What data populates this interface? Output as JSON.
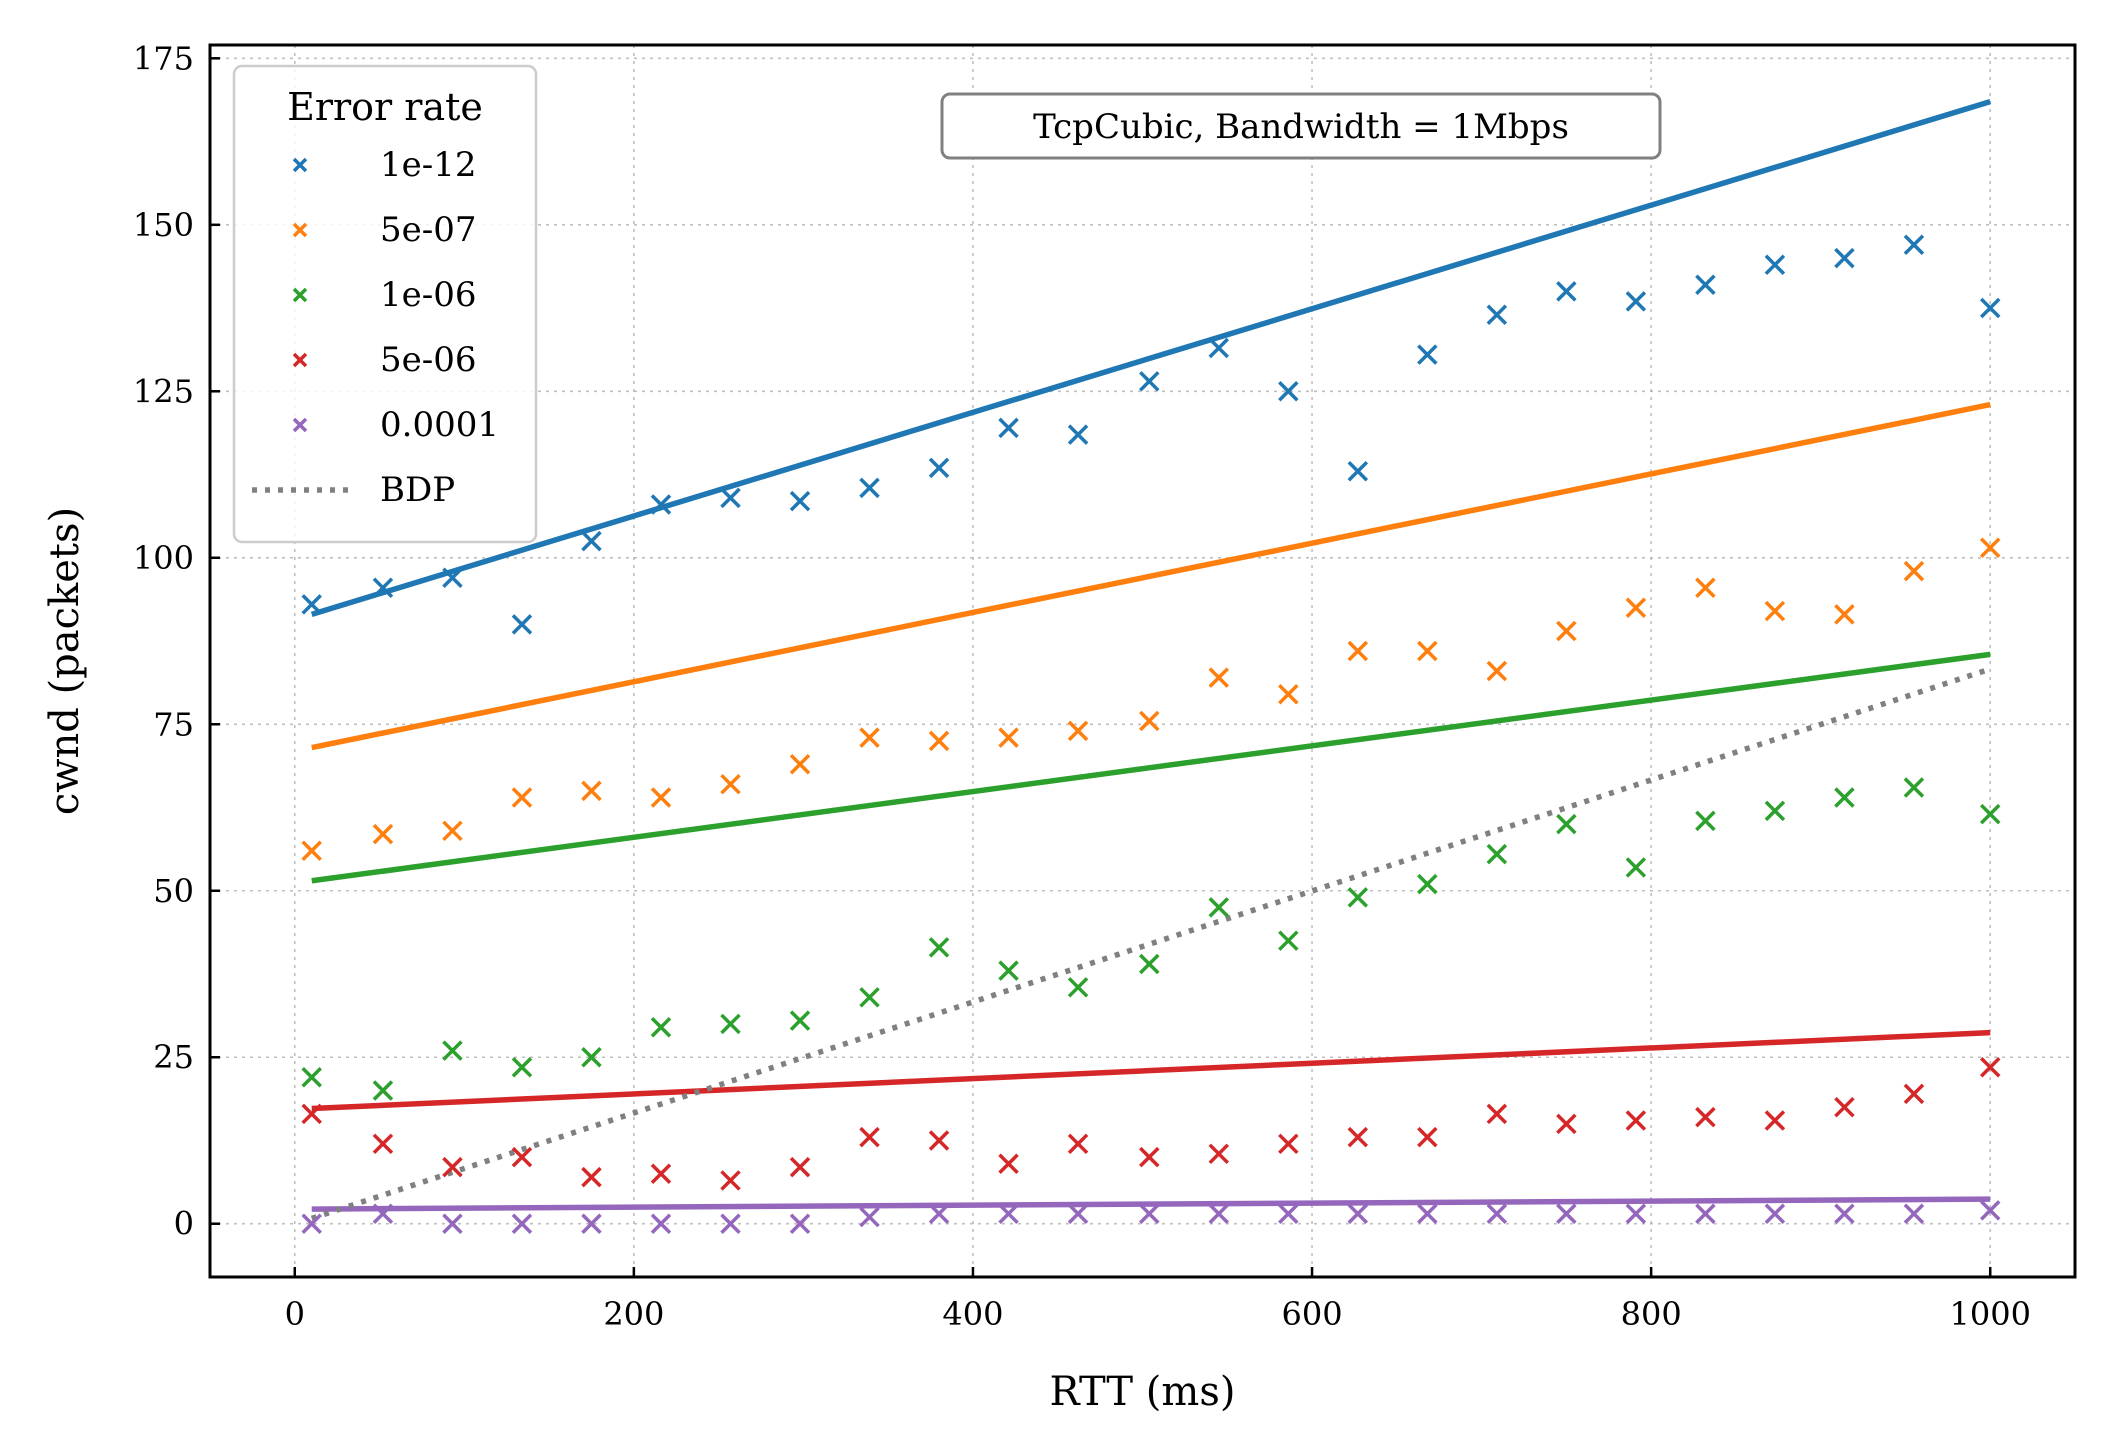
{
  "chart_data": {
    "type": "scatter",
    "annotation": "TcpCubic, Bandwidth = 1Mbps",
    "xlabel": "RTT (ms)",
    "ylabel": "cwnd (packets)",
    "xlim": [
      -50,
      1050
    ],
    "ylim": [
      -8,
      177
    ],
    "xticks": [
      0,
      200,
      400,
      600,
      800,
      1000
    ],
    "yticks": [
      0,
      25,
      50,
      75,
      100,
      125,
      150,
      175
    ],
    "grid": true,
    "legend": {
      "title": "Error rate",
      "placement": "top-left"
    },
    "x": [
      10,
      52,
      93,
      134,
      175,
      216,
      257,
      298,
      339,
      380,
      421,
      462,
      504,
      545,
      586,
      627,
      668,
      709,
      750,
      791,
      832,
      873,
      914,
      955,
      1000
    ],
    "series": [
      {
        "name": "1e-12",
        "color": "#1f77b4",
        "points": [
          93,
          95.5,
          97,
          90,
          102.5,
          108,
          109,
          108.5,
          110.5,
          113.5,
          119.5,
          118.5,
          126.5,
          131.5,
          125,
          113,
          130.5,
          136.5,
          140,
          138.5,
          141,
          144,
          145,
          147,
          137.5
        ],
        "fit": [
          91.5,
          168.5
        ]
      },
      {
        "name": "5e-07",
        "color": "#ff7f0e",
        "points": [
          56,
          58.5,
          59,
          64,
          65,
          64,
          66,
          69,
          73,
          72.5,
          73,
          74,
          75.5,
          82,
          79.5,
          86,
          86,
          83,
          89,
          92.5,
          95.5,
          92,
          91.5,
          98,
          101.5
        ],
        "fit": [
          71.5,
          123
        ]
      },
      {
        "name": "1e-06",
        "color": "#2ca02c",
        "points": [
          22,
          20,
          26,
          23.5,
          25,
          29.5,
          30,
          30.5,
          34,
          41.5,
          38,
          35.5,
          39,
          47.5,
          42.5,
          49,
          51,
          55.5,
          60,
          53.5,
          60.5,
          62,
          64,
          65.5,
          61.5
        ],
        "fit": [
          51.5,
          85.5
        ]
      },
      {
        "name": "5e-06",
        "color": "#d62728",
        "points": [
          16.5,
          12,
          8.5,
          10,
          7,
          7.5,
          6.5,
          8.5,
          13,
          12.5,
          9,
          12,
          10,
          10.5,
          12,
          13,
          13,
          16.5,
          15,
          15.5,
          16,
          15.5,
          17.5,
          19.5,
          23.5
        ],
        "fit": [
          17.3,
          28.7
        ]
      },
      {
        "name": "0.0001",
        "color": "#9467bd",
        "points": [
          0,
          1.5,
          0,
          0,
          0,
          0,
          0,
          0,
          1,
          1.5,
          1.5,
          1.5,
          1.5,
          1.5,
          1.5,
          1.5,
          1.5,
          1.5,
          1.5,
          1.5,
          1.5,
          1.5,
          1.5,
          1.5,
          2
        ],
        "fit": [
          2.2,
          3.7
        ]
      }
    ],
    "bdp": {
      "name": "BDP",
      "color": "#808080",
      "x": [
        10,
        1000
      ],
      "y": [
        0.8,
        83.3
      ]
    }
  }
}
